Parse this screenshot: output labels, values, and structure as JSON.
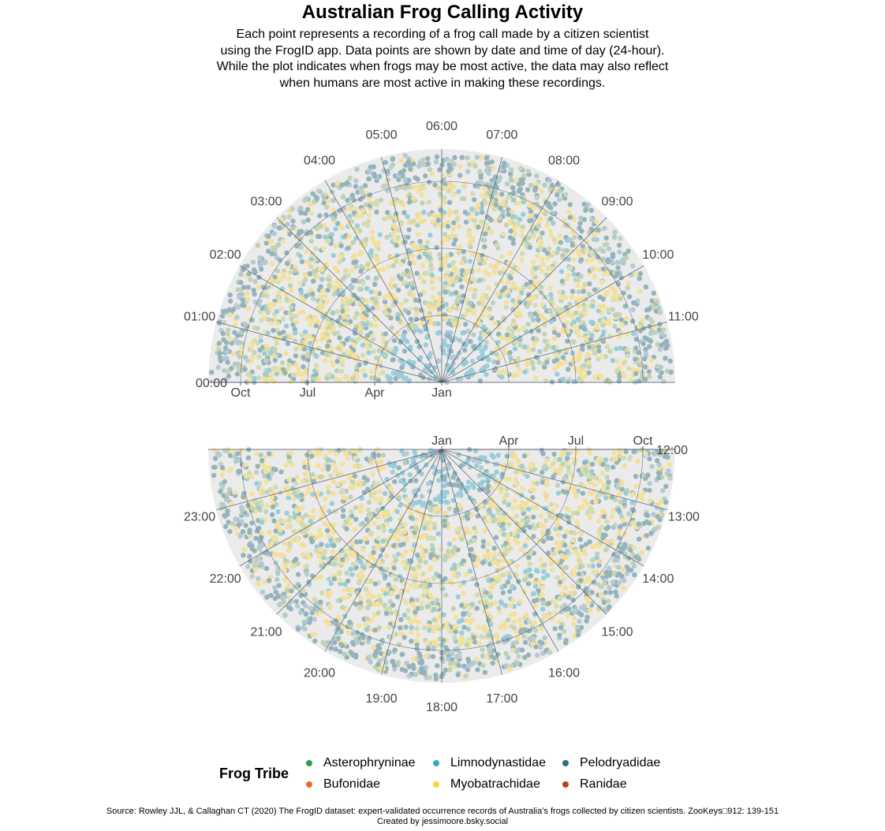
{
  "title": "Australian Frog Calling Activity",
  "subtitle": [
    "Each point represents a recording of a frog call made by a citizen scientist",
    "using the FrogID app. Data points are shown by date and time of day (24-hour).",
    "While the plot indicates when frogs may be most active, the data may also reflect",
    "when humans are most active in making these recordings."
  ],
  "legend": {
    "title": "Frog Tribe",
    "items": [
      {
        "label": "Asterophryninae",
        "color": "#2e9e44"
      },
      {
        "label": "Bufonidae",
        "color": "#ef6b28"
      },
      {
        "label": "Limnodynastidae",
        "color": "#35a9c6"
      },
      {
        "label": "Myobatrachidae",
        "color": "#fdd33a"
      },
      {
        "label": "Pelodryadidae",
        "color": "#2f7082"
      },
      {
        "label": "Ranidae",
        "color": "#b8461c"
      }
    ]
  },
  "caption": [
    "Source: Rowley JJL, & Callaghan CT (2020) The FrogID dataset: expert-validated occurrence records of Australia’s frogs collected by citizen scientists. ZooKeys□912: 139-151",
    "Created by jessimoore.bsky.social"
  ],
  "chart_data": [
    {
      "type": "scatter",
      "coordinates": "polar half-disc",
      "panel": "top",
      "angle_variable": "time of day (24-hour)",
      "angle_range": [
        "00:00",
        "12:00"
      ],
      "angle_ticks": [
        "00:00",
        "01:00",
        "02:00",
        "03:00",
        "04:00",
        "05:00",
        "06:00",
        "07:00",
        "08:00",
        "09:00",
        "10:00",
        "11:00"
      ],
      "radius_variable": "date",
      "radius_ticks": [
        "Jan",
        "Apr",
        "Jul",
        "Oct"
      ],
      "radius_ticks_side": "left",
      "series": [
        {
          "name": "Asterophryninae",
          "color": "#2e9e44"
        },
        {
          "name": "Bufonidae",
          "color": "#ef6b28"
        },
        {
          "name": "Limnodynastidae",
          "color": "#35a9c6"
        },
        {
          "name": "Myobatrachidae",
          "color": "#fdd33a"
        },
        {
          "name": "Pelodryadidae",
          "color": "#2f7082"
        },
        {
          "name": "Ranidae",
          "color": "#b8461c"
        }
      ],
      "background": "#ebebeb",
      "grid": true
    },
    {
      "type": "scatter",
      "coordinates": "polar half-disc",
      "panel": "bottom",
      "angle_variable": "time of day (24-hour)",
      "angle_range": [
        "12:00",
        "24:00"
      ],
      "angle_ticks": [
        "12:00",
        "13:00",
        "14:00",
        "15:00",
        "16:00",
        "17:00",
        "18:00",
        "19:00",
        "20:00",
        "21:00",
        "22:00",
        "23:00"
      ],
      "radius_variable": "date",
      "radius_ticks": [
        "Jan",
        "Apr",
        "Jul",
        "Oct"
      ],
      "radius_ticks_side": "right",
      "series": [
        {
          "name": "Asterophryninae",
          "color": "#2e9e44"
        },
        {
          "name": "Bufonidae",
          "color": "#ef6b28"
        },
        {
          "name": "Limnodynastidae",
          "color": "#35a9c6"
        },
        {
          "name": "Myobatrachidae",
          "color": "#fdd33a"
        },
        {
          "name": "Pelodryadidae",
          "color": "#2f7082"
        },
        {
          "name": "Ranidae",
          "color": "#b8461c"
        }
      ],
      "background": "#ebebeb",
      "grid": true
    }
  ]
}
